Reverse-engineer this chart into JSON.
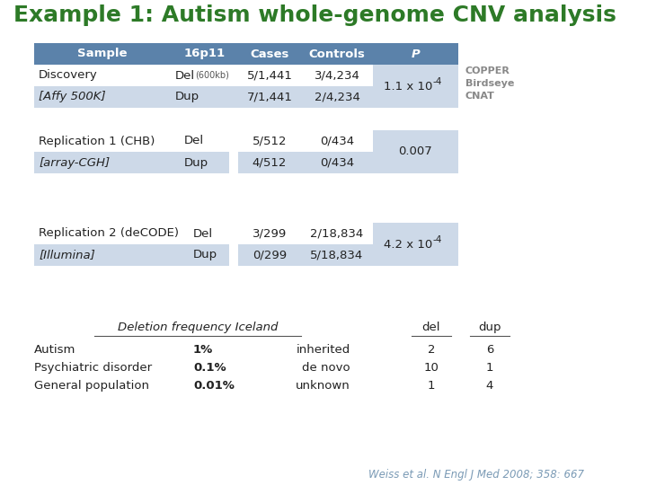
{
  "title": "Example 1: Autism whole-genome CNV analysis",
  "title_color": "#2d7a27",
  "title_fontsize": 18,
  "bg_color": "#ffffff",
  "header_bg": "#5b82aa",
  "header_fg": "#ffffff",
  "alt_bg": "#cdd9e8",
  "white_bg": "#ffffff",
  "table1_headers": [
    "Sample",
    "16p11",
    "Cases",
    "Controls",
    "P"
  ],
  "table1_rows": [
    [
      "Discovery",
      "Del",
      "(600kb)",
      "5/1,441",
      "3/4,234"
    ],
    [
      "[Affy 500K]",
      "Dup",
      "",
      "7/1,441",
      "2/4,234"
    ]
  ],
  "table1_p": "1.1 x 10",
  "table1_p_exp": "-4",
  "table2_rows": [
    [
      "Replication 1 (CHB)",
      "Del",
      "5/512",
      "0/434"
    ],
    [
      "[array-CGH]",
      "Dup",
      "4/512",
      "0/434"
    ]
  ],
  "table2_p": "0.007",
  "table3_rows": [
    [
      "Replication 2 (deCODE)",
      "Del",
      "3/299",
      "2/18,834"
    ],
    [
      "[Illumina]",
      "Dup",
      "0/299",
      "5/18,834"
    ]
  ],
  "table3_p": "4.2 x 10",
  "table3_p_exp": "-4",
  "copper_labels": [
    "COPPER",
    "Birdseye",
    "CNAT"
  ],
  "freq_label": "Deletion frequency Iceland",
  "bottom_rows": [
    [
      "Autism",
      "1%",
      "inherited",
      "2",
      "6"
    ],
    [
      "Psychiatric disorder",
      "0.1%",
      "de novo",
      "10",
      "1"
    ],
    [
      "General population",
      "0.01%",
      "unknown",
      "1",
      "4"
    ]
  ],
  "citation": "Weiss et al. N Engl J Med 2008; 358: 667",
  "citation_color": "#7a9ab5"
}
